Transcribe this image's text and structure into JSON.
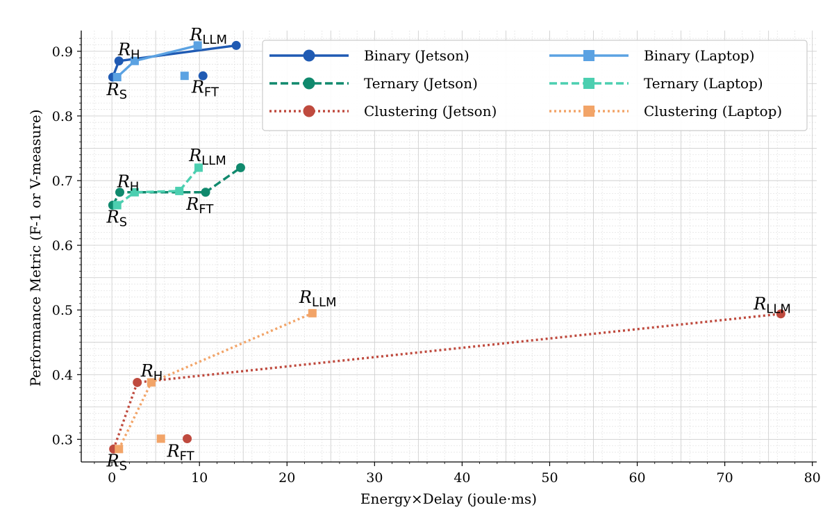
{
  "chart_data": {
    "type": "line",
    "title": "",
    "xlabel": "Energy×Delay (joule·ms)",
    "ylabel": "Performance Metric (F-1 or V-measure)",
    "xlim": [
      -3.5,
      80.5
    ],
    "ylim": [
      0.265,
      0.932
    ],
    "xticks": [
      0,
      10,
      20,
      30,
      40,
      50,
      60,
      70,
      80
    ],
    "yticks": [
      0.3,
      0.4,
      0.5,
      0.6,
      0.7,
      0.8,
      0.9
    ],
    "grid": true,
    "legend_position": "top-right",
    "series": [
      {
        "name": "Binary (Jetson)",
        "color": "#1f5ab3",
        "marker": "circle",
        "dash": "solid",
        "points": [
          [
            0.1,
            0.86
          ],
          [
            0.8,
            0.885
          ],
          [
            14.2,
            0.909
          ]
        ],
        "extra_points": [
          [
            10.4,
            0.862
          ]
        ]
      },
      {
        "name": "Binary (Laptop)",
        "color": "#5ba2e2",
        "marker": "square",
        "dash": "solid",
        "points": [
          [
            0.6,
            0.86
          ],
          [
            2.6,
            0.885
          ],
          [
            9.8,
            0.909
          ]
        ],
        "extra_points": [
          [
            8.3,
            0.862
          ]
        ]
      },
      {
        "name": "Ternary (Jetson)",
        "color": "#10896d",
        "marker": "circle",
        "dash": "dashed",
        "points": [
          [
            0.1,
            0.662
          ],
          [
            0.9,
            0.682
          ],
          [
            10.7,
            0.682
          ],
          [
            14.7,
            0.72
          ]
        ],
        "extra_points": []
      },
      {
        "name": "Ternary (Laptop)",
        "color": "#4ccfb0",
        "marker": "square",
        "dash": "dashed",
        "points": [
          [
            0.6,
            0.662
          ],
          [
            2.6,
            0.682
          ],
          [
            7.7,
            0.684
          ],
          [
            9.9,
            0.72
          ]
        ],
        "extra_points": []
      },
      {
        "name": "Clustering (Jetson)",
        "color": "#bf4a3e",
        "marker": "circle",
        "dash": "dotted",
        "points": [
          [
            0.2,
            0.285
          ],
          [
            2.9,
            0.388
          ],
          [
            76.4,
            0.494
          ]
        ],
        "extra_points": [
          [
            8.6,
            0.301
          ]
        ]
      },
      {
        "name": "Clustering (Laptop)",
        "color": "#f2a468",
        "marker": "square",
        "dash": "dotted",
        "points": [
          [
            0.8,
            0.285
          ],
          [
            4.5,
            0.388
          ],
          [
            22.9,
            0.495
          ]
        ],
        "extra_points": [
          [
            5.6,
            0.301
          ]
        ]
      }
    ],
    "annotations": [
      {
        "base": "R",
        "sub": "H",
        "x": 0.7,
        "y": 0.894,
        "anchor": "start"
      },
      {
        "base": "R",
        "sub": "LLM",
        "x": 8.9,
        "y": 0.917,
        "anchor": "start"
      },
      {
        "base": "R",
        "sub": "S",
        "x": -0.6,
        "y": 0.832,
        "anchor": "start"
      },
      {
        "base": "R",
        "sub": "FT",
        "x": 9.1,
        "y": 0.836,
        "anchor": "start"
      },
      {
        "base": "R",
        "sub": "H",
        "x": 0.6,
        "y": 0.69,
        "anchor": "start"
      },
      {
        "base": "R",
        "sub": "LLM",
        "x": 8.8,
        "y": 0.73,
        "anchor": "start"
      },
      {
        "base": "R",
        "sub": "S",
        "x": -0.6,
        "y": 0.635,
        "anchor": "start"
      },
      {
        "base": "R",
        "sub": "FT",
        "x": 8.5,
        "y": 0.655,
        "anchor": "start"
      },
      {
        "base": "R",
        "sub": "LLM",
        "x": 21.4,
        "y": 0.511,
        "anchor": "start"
      },
      {
        "base": "R",
        "sub": "LLM",
        "x": 73.3,
        "y": 0.501,
        "anchor": "start"
      },
      {
        "base": "R",
        "sub": "H",
        "x": 3.3,
        "y": 0.397,
        "anchor": "start"
      },
      {
        "base": "R",
        "sub": "FT",
        "x": 6.3,
        "y": 0.273,
        "anchor": "start"
      },
      {
        "base": "R",
        "sub": "S",
        "x": -0.6,
        "y": 0.258,
        "anchor": "start"
      }
    ]
  }
}
